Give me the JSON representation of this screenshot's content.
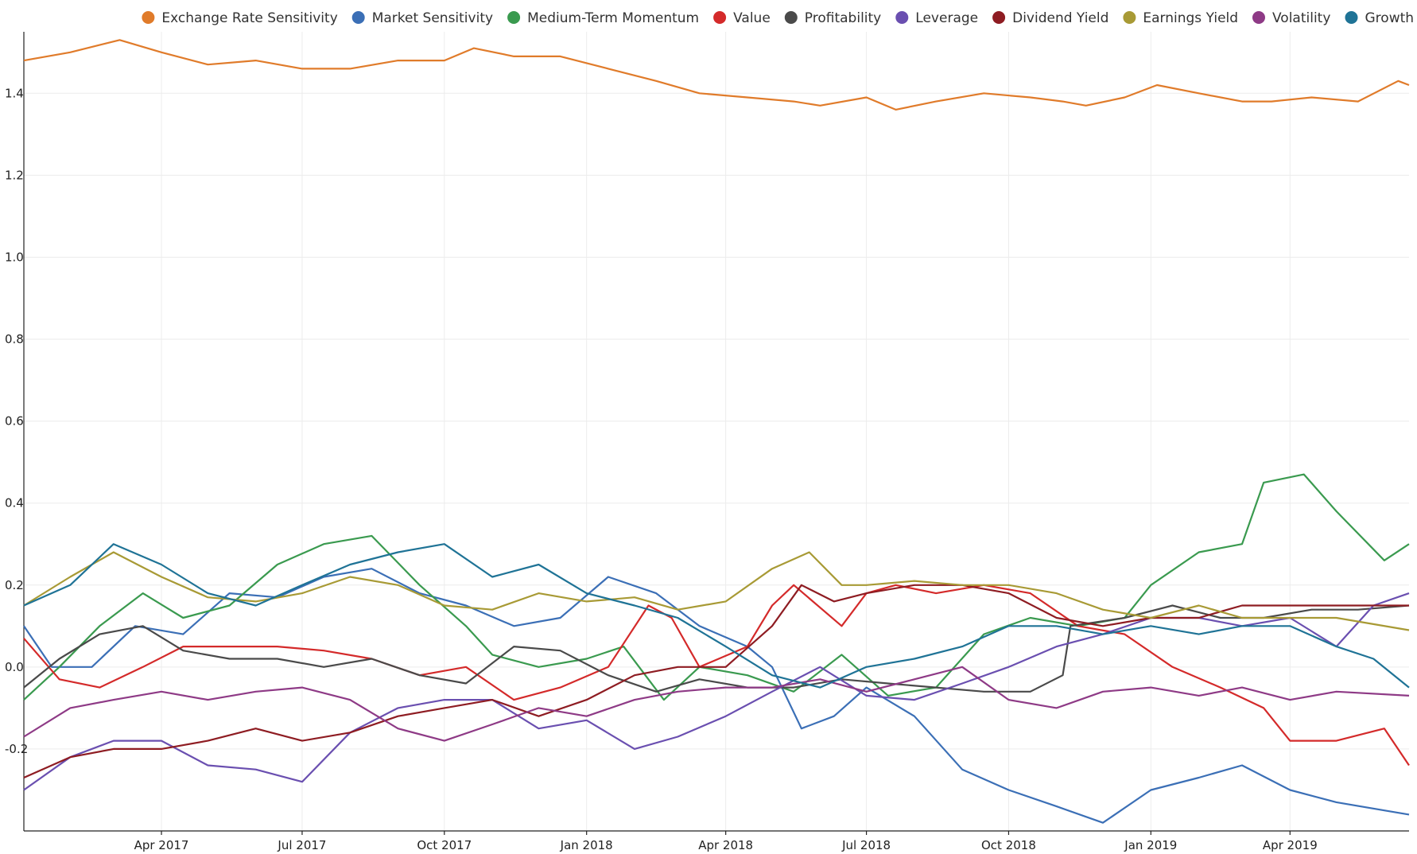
{
  "chart_data": {
    "type": "line",
    "title": "",
    "xlabel": "",
    "ylabel": "",
    "x_range": [
      "2017-01-02",
      "2019-06-17"
    ],
    "ylim": [
      -0.4,
      1.55
    ],
    "grid": true,
    "legend_position": "top",
    "y_ticks": [
      {
        "value": -0.2,
        "label": "-0.2"
      },
      {
        "value": 0.0,
        "label": "0.0"
      },
      {
        "value": 0.2,
        "label": "0.2"
      },
      {
        "value": 0.4,
        "label": "0.4"
      },
      {
        "value": 0.6,
        "label": "0.6"
      },
      {
        "value": 0.8,
        "label": "0.8"
      },
      {
        "value": 1.0,
        "label": "1.0"
      },
      {
        "value": 1.2,
        "label": "1.2"
      },
      {
        "value": 1.4,
        "label": "1.4"
      }
    ],
    "x_ticks": [
      {
        "date": "2017-04-01",
        "label": "Apr 2017"
      },
      {
        "date": "2017-07-01",
        "label": "Jul 2017"
      },
      {
        "date": "2017-10-01",
        "label": "Oct 2017"
      },
      {
        "date": "2018-01-01",
        "label": "Jan 2018"
      },
      {
        "date": "2018-04-01",
        "label": "Apr 2018"
      },
      {
        "date": "2018-07-01",
        "label": "Jul 2018"
      },
      {
        "date": "2018-10-01",
        "label": "Oct 2018"
      },
      {
        "date": "2019-01-01",
        "label": "Jan 2019"
      },
      {
        "date": "2019-04-01",
        "label": "Apr 2019"
      }
    ],
    "series": [
      {
        "name": "Exchange Rate Sensitivity",
        "color": "#e07b2a",
        "x": [
          "2017-01-02",
          "2017-02-01",
          "2017-03-05",
          "2017-04-01",
          "2017-05-01",
          "2017-06-01",
          "2017-07-01",
          "2017-08-01",
          "2017-09-01",
          "2017-10-01",
          "2017-10-20",
          "2017-11-15",
          "2017-12-15",
          "2018-01-15",
          "2018-02-15",
          "2018-03-15",
          "2018-04-15",
          "2018-05-15",
          "2018-06-01",
          "2018-07-01",
          "2018-07-20",
          "2018-08-15",
          "2018-09-15",
          "2018-10-15",
          "2018-11-05",
          "2018-11-20",
          "2018-12-15",
          "2019-01-05",
          "2019-02-01",
          "2019-03-01",
          "2019-03-20",
          "2019-04-15",
          "2019-05-15",
          "2019-06-10",
          "2019-06-17"
        ],
        "y": [
          1.48,
          1.5,
          1.53,
          1.5,
          1.47,
          1.48,
          1.46,
          1.46,
          1.48,
          1.48,
          1.51,
          1.49,
          1.49,
          1.46,
          1.43,
          1.4,
          1.39,
          1.38,
          1.37,
          1.39,
          1.36,
          1.38,
          1.4,
          1.39,
          1.38,
          1.37,
          1.39,
          1.42,
          1.4,
          1.38,
          1.38,
          1.39,
          1.38,
          1.43,
          1.42
        ]
      },
      {
        "name": "Market Sensitivity",
        "color": "#3b6fb6",
        "x": [
          "2017-01-02",
          "2017-01-20",
          "2017-02-15",
          "2017-03-15",
          "2017-04-15",
          "2017-05-15",
          "2017-06-15",
          "2017-07-15",
          "2017-08-15",
          "2017-09-15",
          "2017-10-15",
          "2017-11-15",
          "2017-12-15",
          "2018-01-15",
          "2018-02-15",
          "2018-03-15",
          "2018-04-15",
          "2018-05-01",
          "2018-05-20",
          "2018-06-10",
          "2018-07-01",
          "2018-08-01",
          "2018-09-01",
          "2018-10-01",
          "2018-11-01",
          "2018-12-01",
          "2019-01-01",
          "2019-02-01",
          "2019-03-01",
          "2019-04-01",
          "2019-05-01",
          "2019-06-01",
          "2019-06-17"
        ],
        "y": [
          0.1,
          0.0,
          0.0,
          0.1,
          0.08,
          0.18,
          0.17,
          0.22,
          0.24,
          0.18,
          0.15,
          0.1,
          0.12,
          0.22,
          0.18,
          0.1,
          0.05,
          0.0,
          -0.15,
          -0.12,
          -0.05,
          -0.12,
          -0.25,
          -0.3,
          -0.34,
          -0.38,
          -0.3,
          -0.27,
          -0.24,
          -0.3,
          -0.33,
          -0.35,
          -0.36
        ]
      },
      {
        "name": "Medium-Term Momentum",
        "color": "#3a9a4f",
        "x": [
          "2017-01-02",
          "2017-01-25",
          "2017-02-20",
          "2017-03-20",
          "2017-04-15",
          "2017-05-15",
          "2017-06-15",
          "2017-07-15",
          "2017-08-15",
          "2017-09-15",
          "2017-10-15",
          "2017-11-01",
          "2017-12-01",
          "2018-01-01",
          "2018-01-25",
          "2018-02-20",
          "2018-03-15",
          "2018-04-15",
          "2018-05-15",
          "2018-06-15",
          "2018-07-15",
          "2018-08-15",
          "2018-09-15",
          "2018-10-15",
          "2018-11-15",
          "2018-12-15",
          "2019-01-01",
          "2019-02-01",
          "2019-03-01",
          "2019-03-15",
          "2019-04-10",
          "2019-05-01",
          "2019-06-01",
          "2019-06-17"
        ],
        "y": [
          -0.08,
          0.0,
          0.1,
          0.18,
          0.12,
          0.15,
          0.25,
          0.3,
          0.32,
          0.2,
          0.1,
          0.03,
          0.0,
          0.02,
          0.05,
          -0.08,
          0.0,
          -0.02,
          -0.06,
          0.03,
          -0.07,
          -0.05,
          0.08,
          0.12,
          0.1,
          0.12,
          0.2,
          0.28,
          0.3,
          0.45,
          0.47,
          0.38,
          0.26,
          0.3
        ]
      },
      {
        "name": "Value",
        "color": "#d42a2a",
        "x": [
          "2017-01-02",
          "2017-01-25",
          "2017-02-20",
          "2017-03-20",
          "2017-04-15",
          "2017-05-15",
          "2017-06-15",
          "2017-07-15",
          "2017-08-15",
          "2017-09-15",
          "2017-10-15",
          "2017-11-15",
          "2017-12-15",
          "2018-01-15",
          "2018-02-10",
          "2018-02-25",
          "2018-03-15",
          "2018-04-15",
          "2018-05-01",
          "2018-05-15",
          "2018-06-15",
          "2018-07-01",
          "2018-07-20",
          "2018-08-15",
          "2018-09-15",
          "2018-10-15",
          "2018-11-15",
          "2018-12-15",
          "2019-01-15",
          "2019-02-15",
          "2019-03-15",
          "2019-04-01",
          "2019-05-01",
          "2019-06-01",
          "2019-06-17"
        ],
        "y": [
          0.07,
          -0.03,
          -0.05,
          0.0,
          0.05,
          0.05,
          0.05,
          0.04,
          0.02,
          -0.02,
          0.0,
          -0.08,
          -0.05,
          0.0,
          0.15,
          0.12,
          0.0,
          0.05,
          0.15,
          0.2,
          0.1,
          0.18,
          0.2,
          0.18,
          0.2,
          0.18,
          0.1,
          0.08,
          0.0,
          -0.05,
          -0.1,
          -0.18,
          -0.18,
          -0.15,
          -0.24
        ]
      },
      {
        "name": "Profitability",
        "color": "#4a4a4a",
        "x": [
          "2017-01-02",
          "2017-01-25",
          "2017-02-20",
          "2017-03-20",
          "2017-04-15",
          "2017-05-15",
          "2017-06-15",
          "2017-07-15",
          "2017-08-15",
          "2017-09-15",
          "2017-10-15",
          "2017-11-15",
          "2017-12-15",
          "2018-01-15",
          "2018-02-15",
          "2018-03-15",
          "2018-04-15",
          "2018-05-15",
          "2018-06-15",
          "2018-07-15",
          "2018-08-15",
          "2018-09-15",
          "2018-10-15",
          "2018-11-05",
          "2018-11-10",
          "2018-12-15",
          "2019-01-15",
          "2019-02-15",
          "2019-03-15",
          "2019-04-15",
          "2019-05-15",
          "2019-06-17"
        ],
        "y": [
          -0.05,
          0.02,
          0.08,
          0.1,
          0.04,
          0.02,
          0.02,
          0.0,
          0.02,
          -0.02,
          -0.04,
          0.05,
          0.04,
          -0.02,
          -0.06,
          -0.03,
          -0.05,
          -0.05,
          -0.03,
          -0.04,
          -0.05,
          -0.06,
          -0.06,
          -0.02,
          0.1,
          0.12,
          0.15,
          0.12,
          0.12,
          0.14,
          0.14,
          0.15
        ]
      },
      {
        "name": "Leverage",
        "color": "#6a4fb0",
        "x": [
          "2017-01-02",
          "2017-02-01",
          "2017-03-01",
          "2017-04-01",
          "2017-05-01",
          "2017-06-01",
          "2017-07-01",
          "2017-08-01",
          "2017-09-01",
          "2017-10-01",
          "2017-11-01",
          "2017-12-01",
          "2018-01-01",
          "2018-02-01",
          "2018-03-01",
          "2018-04-01",
          "2018-05-01",
          "2018-06-01",
          "2018-07-01",
          "2018-08-01",
          "2018-09-01",
          "2018-10-01",
          "2018-11-01",
          "2018-12-01",
          "2019-01-01",
          "2019-02-01",
          "2019-03-01",
          "2019-04-01",
          "2019-05-01",
          "2019-05-25",
          "2019-06-17"
        ],
        "y": [
          -0.3,
          -0.22,
          -0.18,
          -0.18,
          -0.24,
          -0.25,
          -0.28,
          -0.16,
          -0.1,
          -0.08,
          -0.08,
          -0.15,
          -0.13,
          -0.2,
          -0.17,
          -0.12,
          -0.06,
          0.0,
          -0.07,
          -0.08,
          -0.04,
          0.0,
          0.05,
          0.08,
          0.12,
          0.12,
          0.1,
          0.12,
          0.05,
          0.15,
          0.18
        ]
      },
      {
        "name": "Dividend Yield",
        "color": "#8e1c22",
        "x": [
          "2017-01-02",
          "2017-02-01",
          "2017-03-01",
          "2017-04-01",
          "2017-05-01",
          "2017-06-01",
          "2017-07-01",
          "2017-08-01",
          "2017-09-01",
          "2017-10-01",
          "2017-11-01",
          "2017-12-01",
          "2018-01-01",
          "2018-02-01",
          "2018-03-01",
          "2018-04-01",
          "2018-05-01",
          "2018-05-20",
          "2018-06-10",
          "2018-07-01",
          "2018-08-01",
          "2018-09-01",
          "2018-10-01",
          "2018-11-01",
          "2018-12-01",
          "2019-01-01",
          "2019-02-01",
          "2019-03-01",
          "2019-04-01",
          "2019-05-01",
          "2019-06-17"
        ],
        "y": [
          -0.27,
          -0.22,
          -0.2,
          -0.2,
          -0.18,
          -0.15,
          -0.18,
          -0.16,
          -0.12,
          -0.1,
          -0.08,
          -0.12,
          -0.08,
          -0.02,
          0.0,
          0.0,
          0.1,
          0.2,
          0.16,
          0.18,
          0.2,
          0.2,
          0.18,
          0.12,
          0.1,
          0.12,
          0.12,
          0.15,
          0.15,
          0.15,
          0.15
        ]
      },
      {
        "name": "Earnings Yield",
        "color": "#a89a35",
        "x": [
          "2017-01-02",
          "2017-02-01",
          "2017-03-01",
          "2017-04-01",
          "2017-05-01",
          "2017-06-01",
          "2017-07-01",
          "2017-08-01",
          "2017-09-01",
          "2017-10-01",
          "2017-11-01",
          "2017-12-01",
          "2018-01-01",
          "2018-02-01",
          "2018-03-01",
          "2018-04-01",
          "2018-05-01",
          "2018-05-25",
          "2018-06-15",
          "2018-07-01",
          "2018-08-01",
          "2018-09-01",
          "2018-10-01",
          "2018-11-01",
          "2018-12-01",
          "2019-01-01",
          "2019-02-01",
          "2019-03-01",
          "2019-04-01",
          "2019-05-01",
          "2019-06-17"
        ],
        "y": [
          0.15,
          0.22,
          0.28,
          0.22,
          0.17,
          0.16,
          0.18,
          0.22,
          0.2,
          0.15,
          0.14,
          0.18,
          0.16,
          0.17,
          0.14,
          0.16,
          0.24,
          0.28,
          0.2,
          0.2,
          0.21,
          0.2,
          0.2,
          0.18,
          0.14,
          0.12,
          0.15,
          0.12,
          0.12,
          0.12,
          0.09
        ]
      },
      {
        "name": "Volatility",
        "color": "#8e3a86",
        "x": [
          "2017-01-02",
          "2017-02-01",
          "2017-03-01",
          "2017-04-01",
          "2017-05-01",
          "2017-06-01",
          "2017-07-01",
          "2017-08-01",
          "2017-09-01",
          "2017-10-01",
          "2017-11-01",
          "2017-12-01",
          "2018-01-01",
          "2018-02-01",
          "2018-03-01",
          "2018-04-01",
          "2018-05-01",
          "2018-06-01",
          "2018-07-01",
          "2018-08-01",
          "2018-09-01",
          "2018-10-01",
          "2018-11-01",
          "2018-12-01",
          "2019-01-01",
          "2019-02-01",
          "2019-03-01",
          "2019-04-01",
          "2019-05-01",
          "2019-06-17"
        ],
        "y": [
          -0.17,
          -0.1,
          -0.08,
          -0.06,
          -0.08,
          -0.06,
          -0.05,
          -0.08,
          -0.15,
          -0.18,
          -0.14,
          -0.1,
          -0.12,
          -0.08,
          -0.06,
          -0.05,
          -0.05,
          -0.03,
          -0.06,
          -0.03,
          0.0,
          -0.08,
          -0.1,
          -0.06,
          -0.05,
          -0.07,
          -0.05,
          -0.08,
          -0.06,
          -0.07
        ]
      },
      {
        "name": "Growth",
        "color": "#1f7396",
        "x": [
          "2017-01-02",
          "2017-02-01",
          "2017-03-01",
          "2017-04-01",
          "2017-05-01",
          "2017-06-01",
          "2017-07-01",
          "2017-08-01",
          "2017-09-01",
          "2017-10-01",
          "2017-11-01",
          "2017-12-01",
          "2018-01-01",
          "2018-02-01",
          "2018-03-01",
          "2018-04-01",
          "2018-05-01",
          "2018-06-01",
          "2018-07-01",
          "2018-08-01",
          "2018-09-01",
          "2018-10-01",
          "2018-11-01",
          "2018-12-01",
          "2019-01-01",
          "2019-02-01",
          "2019-03-01",
          "2019-04-01",
          "2019-05-01",
          "2019-05-25",
          "2019-06-17"
        ],
        "y": [
          0.15,
          0.2,
          0.3,
          0.25,
          0.18,
          0.15,
          0.2,
          0.25,
          0.28,
          0.3,
          0.22,
          0.25,
          0.18,
          0.15,
          0.12,
          0.05,
          -0.02,
          -0.05,
          0.0,
          0.02,
          0.05,
          0.1,
          0.1,
          0.08,
          0.1,
          0.08,
          0.1,
          0.1,
          0.05,
          0.02,
          -0.05
        ]
      }
    ]
  }
}
